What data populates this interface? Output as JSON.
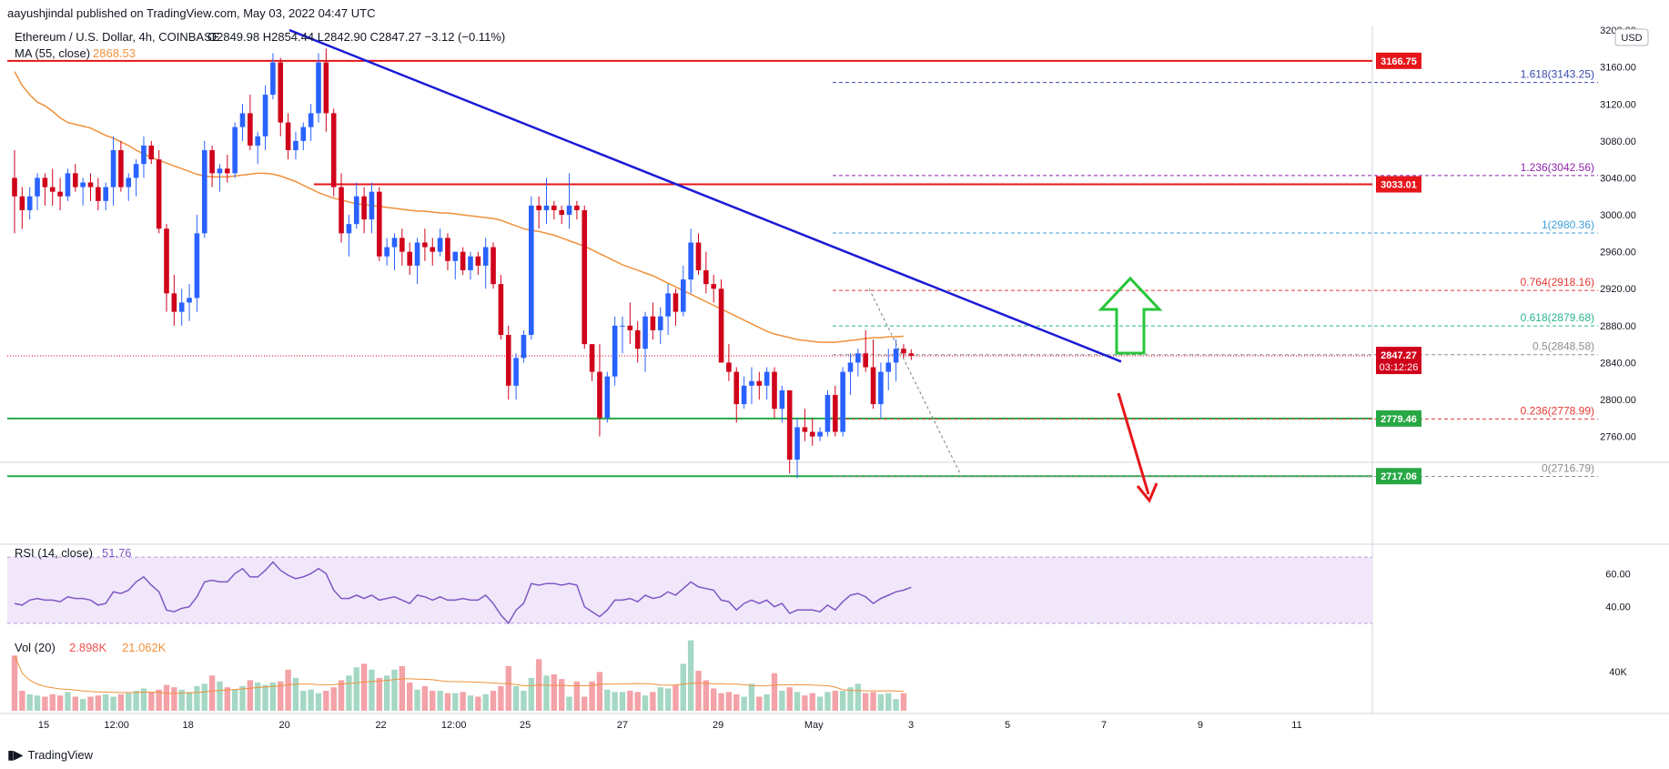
{
  "header": {
    "published": "aayushjindal published on TradingView.com, May 03, 2022 04:47 UTC"
  },
  "footer": {
    "brand": "TradingView"
  },
  "legend": {
    "symbol": "Ethereum / U.S. Dollar, 4h, COINBASE",
    "ohlc": "O2849.98 H2854.44 L2842.90 C2847.27 −3.12 (−0.11%)",
    "ma_label": "MA (55, close)",
    "ma_value": "2868.53",
    "rsi_label": "RSI (14, close)",
    "rsi_value": "51.76",
    "vol_label": "Vol (20)",
    "vol_value1": "2.898K",
    "vol_value2": "21.062K"
  },
  "currency": "USD",
  "colors": {
    "up": "#2962ff",
    "down": "#d0021b",
    "ma": "#f0913a",
    "trendline": "#1b1bd6",
    "resistance": "#e6161a",
    "support": "#27a844",
    "vol_up": "#a5d8c4",
    "vol_down": "#f3a2a8",
    "rsi_line": "#7e57c2",
    "rsi_band": "#f1e7fb"
  },
  "chart_data": {
    "type": "candlestick",
    "ylim": [
      2735,
      3205
    ],
    "yticks": [
      "3200.00",
      "3160.00",
      "3120.00",
      "3080.00",
      "3040.00",
      "3000.00",
      "2960.00",
      "2920.00",
      "2880.00",
      "2840.00",
      "2800.00",
      "2760.00"
    ],
    "xticks": [
      "15",
      "12:00",
      "18",
      "20",
      "22",
      "12:00",
      "25",
      "27",
      "29",
      "May",
      "3",
      "5",
      "7",
      "9",
      "11"
    ],
    "candles": [
      [
        3040,
        3070,
        2980,
        3020
      ],
      [
        3020,
        3030,
        2985,
        3005
      ],
      [
        3005,
        3030,
        2995,
        3020
      ],
      [
        3020,
        3045,
        3005,
        3040
      ],
      [
        3040,
        3045,
        3010,
        3030
      ],
      [
        3030,
        3050,
        3010,
        3025
      ],
      [
        3025,
        3040,
        3005,
        3020
      ],
      [
        3020,
        3050,
        3015,
        3045
      ],
      [
        3045,
        3055,
        3025,
        3030
      ],
      [
        3030,
        3040,
        3010,
        3035
      ],
      [
        3035,
        3045,
        3015,
        3030
      ],
      [
        3030,
        3040,
        3005,
        3015
      ],
      [
        3015,
        3035,
        3005,
        3030
      ],
      [
        3030,
        3085,
        3010,
        3070
      ],
      [
        3070,
        3080,
        3025,
        3030
      ],
      [
        3030,
        3045,
        3015,
        3040
      ],
      [
        3040,
        3060,
        3020,
        3055
      ],
      [
        3055,
        3085,
        3040,
        3075
      ],
      [
        3075,
        3080,
        3055,
        3060
      ],
      [
        3060,
        3070,
        2980,
        2985
      ],
      [
        2985,
        2990,
        2895,
        2915
      ],
      [
        2915,
        2935,
        2880,
        2895
      ],
      [
        2895,
        2920,
        2880,
        2905
      ],
      [
        2905,
        2925,
        2885,
        2910
      ],
      [
        2910,
        3000,
        2895,
        2980
      ],
      [
        2980,
        3080,
        2975,
        3070
      ],
      [
        3070,
        3075,
        3030,
        3045
      ],
      [
        3045,
        3055,
        3025,
        3050
      ],
      [
        3050,
        3065,
        3035,
        3045
      ],
      [
        3045,
        3100,
        3040,
        3095
      ],
      [
        3095,
        3120,
        3080,
        3110
      ],
      [
        3110,
        3130,
        3070,
        3075
      ],
      [
        3075,
        3090,
        3055,
        3085
      ],
      [
        3085,
        3140,
        3070,
        3130
      ],
      [
        3130,
        3175,
        3125,
        3165
      ],
      [
        3165,
        3170,
        3085,
        3100
      ],
      [
        3100,
        3110,
        3060,
        3070
      ],
      [
        3070,
        3090,
        3060,
        3080
      ],
      [
        3080,
        3100,
        3070,
        3095
      ],
      [
        3095,
        3120,
        3080,
        3110
      ],
      [
        3110,
        3175,
        3100,
        3165
      ],
      [
        3165,
        3180,
        3090,
        3110
      ],
      [
        3110,
        3115,
        3020,
        3030
      ],
      [
        3030,
        3045,
        2970,
        2980
      ],
      [
        2980,
        3000,
        2955,
        2990
      ],
      [
        2990,
        3035,
        2985,
        3020
      ],
      [
        3020,
        3030,
        2980,
        2995
      ],
      [
        2995,
        3035,
        2980,
        3025
      ],
      [
        3025,
        3030,
        2950,
        2955
      ],
      [
        2955,
        2975,
        2945,
        2965
      ],
      [
        2965,
        2980,
        2940,
        2975
      ],
      [
        2975,
        2985,
        2945,
        2960
      ],
      [
        2960,
        2970,
        2935,
        2945
      ],
      [
        2945,
        2975,
        2925,
        2970
      ],
      [
        2970,
        2985,
        2950,
        2965
      ],
      [
        2965,
        2975,
        2945,
        2960
      ],
      [
        2960,
        2985,
        2955,
        2975
      ],
      [
        2975,
        2980,
        2940,
        2950
      ],
      [
        2950,
        2960,
        2930,
        2960
      ],
      [
        2960,
        2965,
        2935,
        2940
      ],
      [
        2940,
        2960,
        2930,
        2955
      ],
      [
        2955,
        2960,
        2935,
        2945
      ],
      [
        2945,
        2975,
        2920,
        2965
      ],
      [
        2965,
        2970,
        2920,
        2925
      ],
      [
        2925,
        2935,
        2865,
        2870
      ],
      [
        2870,
        2880,
        2800,
        2815
      ],
      [
        2815,
        2850,
        2800,
        2845
      ],
      [
        2845,
        2875,
        2840,
        2870
      ],
      [
        2870,
        3020,
        2865,
        3010
      ],
      [
        3010,
        3020,
        2985,
        3005
      ],
      [
        3005,
        3040,
        2990,
        3010
      ],
      [
        3010,
        3015,
        2995,
        3005
      ],
      [
        3005,
        3010,
        2990,
        3000
      ],
      [
        3000,
        3045,
        2985,
        3010
      ],
      [
        3010,
        3015,
        2995,
        3005
      ],
      [
        3005,
        3010,
        2855,
        2860
      ],
      [
        2860,
        2860,
        2820,
        2830
      ],
      [
        2830,
        2860,
        2760,
        2780
      ],
      [
        2780,
        2830,
        2775,
        2825
      ],
      [
        2825,
        2890,
        2815,
        2880
      ],
      [
        2880,
        2890,
        2850,
        2880
      ],
      [
        2880,
        2905,
        2860,
        2875
      ],
      [
        2875,
        2885,
        2840,
        2855
      ],
      [
        2855,
        2895,
        2830,
        2890
      ],
      [
        2890,
        2905,
        2865,
        2875
      ],
      [
        2875,
        2900,
        2860,
        2890
      ],
      [
        2890,
        2925,
        2870,
        2915
      ],
      [
        2915,
        2920,
        2880,
        2895
      ],
      [
        2895,
        2945,
        2890,
        2930
      ],
      [
        2930,
        2985,
        2915,
        2970
      ],
      [
        2970,
        2980,
        2935,
        2940
      ],
      [
        2940,
        2960,
        2915,
        2925
      ],
      [
        2925,
        2935,
        2905,
        2920
      ],
      [
        2920,
        2930,
        2840,
        2840
      ],
      [
        2840,
        2860,
        2820,
        2830
      ],
      [
        2830,
        2835,
        2775,
        2795
      ],
      [
        2795,
        2825,
        2790,
        2815
      ],
      [
        2815,
        2835,
        2795,
        2820
      ],
      [
        2820,
        2830,
        2800,
        2815
      ],
      [
        2815,
        2835,
        2800,
        2830
      ],
      [
        2830,
        2835,
        2780,
        2790
      ],
      [
        2790,
        2815,
        2775,
        2810
      ],
      [
        2810,
        2810,
        2720,
        2735
      ],
      [
        2735,
        2780,
        2715,
        2770
      ],
      [
        2770,
        2790,
        2755,
        2765
      ],
      [
        2765,
        2780,
        2750,
        2760
      ],
      [
        2760,
        2770,
        2755,
        2765
      ],
      [
        2765,
        2810,
        2760,
        2805
      ],
      [
        2805,
        2815,
        2760,
        2765
      ],
      [
        2765,
        2835,
        2760,
        2830
      ],
      [
        2830,
        2850,
        2805,
        2840
      ],
      [
        2840,
        2855,
        2825,
        2850
      ],
      [
        2850,
        2875,
        2830,
        2835
      ],
      [
        2835,
        2865,
        2790,
        2795
      ],
      [
        2795,
        2840,
        2780,
        2830
      ],
      [
        2830,
        2855,
        2810,
        2840
      ],
      [
        2840,
        2865,
        2820,
        2855
      ],
      [
        2855,
        2860,
        2845,
        2850
      ],
      [
        2849.98,
        2854.44,
        2842.9,
        2847.27
      ]
    ],
    "ma_values": [
      3155,
      3140,
      3130,
      3122,
      3118,
      3112,
      3105,
      3100,
      3098,
      3096,
      3094,
      3090,
      3086,
      3083,
      3079,
      3075,
      3070,
      3066,
      3062,
      3059,
      3056,
      3053,
      3050,
      3047,
      3044,
      3042,
      3041,
      3041,
      3041,
      3042,
      3043,
      3044,
      3045,
      3045,
      3044,
      3042,
      3039,
      3036,
      3032,
      3028,
      3024,
      3021,
      3018,
      3016,
      3014,
      3012,
      3011,
      3010,
      3009,
      3008,
      3007,
      3006,
      3005,
      3004,
      3004,
      3003,
      3002,
      3002,
      3001,
      3000,
      2999,
      2998,
      2997,
      2996,
      2994,
      2991,
      2988,
      2985,
      2983,
      2982,
      2980,
      2978,
      2975,
      2972,
      2969,
      2966,
      2962,
      2958,
      2954,
      2950,
      2946,
      2943,
      2940,
      2937,
      2934,
      2930,
      2926,
      2922,
      2918,
      2914,
      2910,
      2906,
      2902,
      2898,
      2894,
      2890,
      2886,
      2882,
      2878,
      2874,
      2871,
      2869,
      2867,
      2865,
      2864,
      2863,
      2862,
      2862,
      2862,
      2863,
      2864,
      2865,
      2866,
      2867,
      2867,
      2868,
      2868,
      2868.53
    ],
    "volume": [
      47,
      17,
      14,
      13,
      12,
      14,
      13,
      16,
      12,
      10,
      12,
      13,
      14,
      12,
      14,
      15,
      17,
      19,
      16,
      18,
      22,
      20,
      18,
      16,
      21,
      23,
      30,
      25,
      20,
      18,
      21,
      26,
      24,
      22,
      24,
      25,
      35,
      28,
      17,
      18,
      15,
      17,
      20,
      26,
      30,
      37,
      40,
      35,
      28,
      30,
      35,
      38,
      24,
      18,
      21,
      17,
      17,
      15,
      15,
      16,
      13,
      12,
      14,
      17,
      21,
      38,
      21,
      17,
      28,
      44,
      30,
      31,
      27,
      12,
      25,
      12,
      25,
      33,
      18,
      16,
      16,
      17,
      16,
      13,
      16,
      20,
      19,
      22,
      40,
      60,
      34,
      26,
      19,
      15,
      16,
      14,
      12,
      23,
      12,
      14,
      32,
      17,
      20,
      16,
      13,
      15,
      12,
      16,
      17,
      17,
      20,
      23,
      15,
      16,
      14,
      15,
      10,
      15
    ],
    "rsi_values": [
      42,
      41,
      44,
      45,
      44,
      44,
      43,
      46,
      45,
      45,
      44,
      41,
      42,
      49,
      48,
      50,
      55,
      58,
      53,
      49,
      38,
      37,
      39,
      40,
      46,
      55,
      56,
      55,
      55,
      60,
      63,
      58,
      58,
      62,
      67,
      62,
      59,
      57,
      58,
      60,
      63,
      60,
      50,
      45,
      45,
      47,
      45,
      47,
      44,
      45,
      46,
      44,
      42,
      47,
      46,
      44,
      46,
      44,
      44,
      45,
      44,
      44,
      47,
      42,
      35,
      30,
      38,
      42,
      54,
      53,
      54,
      54,
      53,
      54,
      53,
      40,
      37,
      34,
      38,
      44,
      44,
      45,
      43,
      47,
      45,
      46,
      49,
      47,
      51,
      55,
      52,
      51,
      50,
      44,
      43,
      38,
      42,
      44,
      42,
      44,
      40,
      42,
      36,
      38,
      38,
      38,
      37,
      41,
      38,
      43,
      47,
      48,
      46,
      42,
      45,
      47,
      49,
      50,
      51.76
    ],
    "resistance_levels": [
      3166.75,
      3033.01
    ],
    "support_levels": [
      2779.46,
      2717.06
    ],
    "trendline": {
      "x1": 20,
      "y1": 3200,
      "x2": 1050,
      "y2": 2850
    },
    "fib_levels": [
      {
        "ratio": "1.618",
        "value": "3143.25",
        "price": 3143.25,
        "color": "#3949ab"
      },
      {
        "ratio": "1.236",
        "value": "3042.56",
        "price": 3042.56,
        "color": "#8e24aa"
      },
      {
        "ratio": "1",
        "value": "2980.36",
        "price": 2980.36,
        "color": "#3d9fd9"
      },
      {
        "ratio": "0.764",
        "value": "2918.16",
        "price": 2918.16,
        "color": "#e53935"
      },
      {
        "ratio": "0.618",
        "value": "2879.68",
        "price": 2879.68,
        "color": "#2bb58f"
      },
      {
        "ratio": "0.5",
        "value": "2848.58",
        "price": 2848.58,
        "color": "#8d8d8d"
      },
      {
        "ratio": "0.236",
        "value": "2778.99",
        "price": 2778.99,
        "color": "#e53935"
      },
      {
        "ratio": "0",
        "value": "2716.79",
        "price": 2716.79,
        "color": "#8d8d8d"
      }
    ],
    "price_badges": [
      {
        "label": "3166.75",
        "price": 3166.75,
        "color": "#e6161a"
      },
      {
        "label": "3033.01",
        "price": 3033.01,
        "color": "#e6161a"
      },
      {
        "label": "2779.46",
        "price": 2779.46,
        "color": "#27a844"
      },
      {
        "label": "2717.06",
        "price": 2717.06,
        "color": "#27a844"
      }
    ],
    "last_price": {
      "label": "2847.27",
      "countdown": "03:12:26",
      "price": 2847.27,
      "color": "#d0021b"
    },
    "rsi_ticks": [
      "60.00",
      "40.00"
    ],
    "vol_ticks": [
      "40K"
    ],
    "vol_max": 62
  }
}
